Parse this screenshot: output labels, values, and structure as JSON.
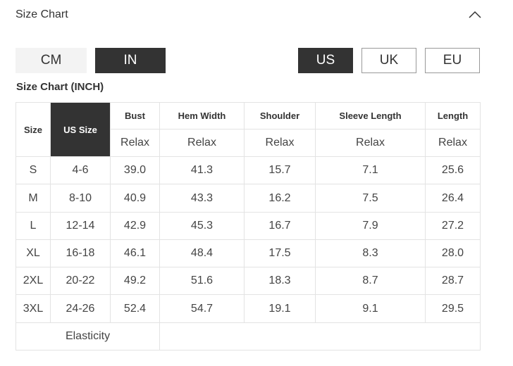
{
  "header": {
    "title": "Size Chart"
  },
  "unit_toggle": {
    "options": [
      "CM",
      "IN"
    ],
    "selected": 1
  },
  "region_toggle": {
    "options": [
      "US",
      "UK",
      "EU"
    ],
    "selected": 0
  },
  "table": {
    "caption": "Size Chart (INCH)",
    "columns": [
      "Size",
      "US Size",
      "Bust",
      "Hem Width",
      "Shoulder",
      "Sleeve Length",
      "Length"
    ],
    "fit": [
      "Relax",
      "Relax",
      "Relax",
      "Relax",
      "Relax"
    ],
    "rows": [
      [
        "S",
        "4-6",
        "39.0",
        "41.3",
        "15.7",
        "7.1",
        "25.6"
      ],
      [
        "M",
        "8-10",
        "40.9",
        "43.3",
        "16.2",
        "7.5",
        "26.4"
      ],
      [
        "L",
        "12-14",
        "42.9",
        "45.3",
        "16.7",
        "7.9",
        "27.2"
      ],
      [
        "XL",
        "16-18",
        "46.1",
        "48.4",
        "17.5",
        "8.3",
        "28.0"
      ],
      [
        "2XL",
        "20-22",
        "49.2",
        "51.6",
        "18.3",
        "8.7",
        "28.7"
      ],
      [
        "3XL",
        "24-26",
        "52.4",
        "54.7",
        "19.1",
        "9.1",
        "29.5"
      ]
    ],
    "footer": "Elasticity"
  }
}
